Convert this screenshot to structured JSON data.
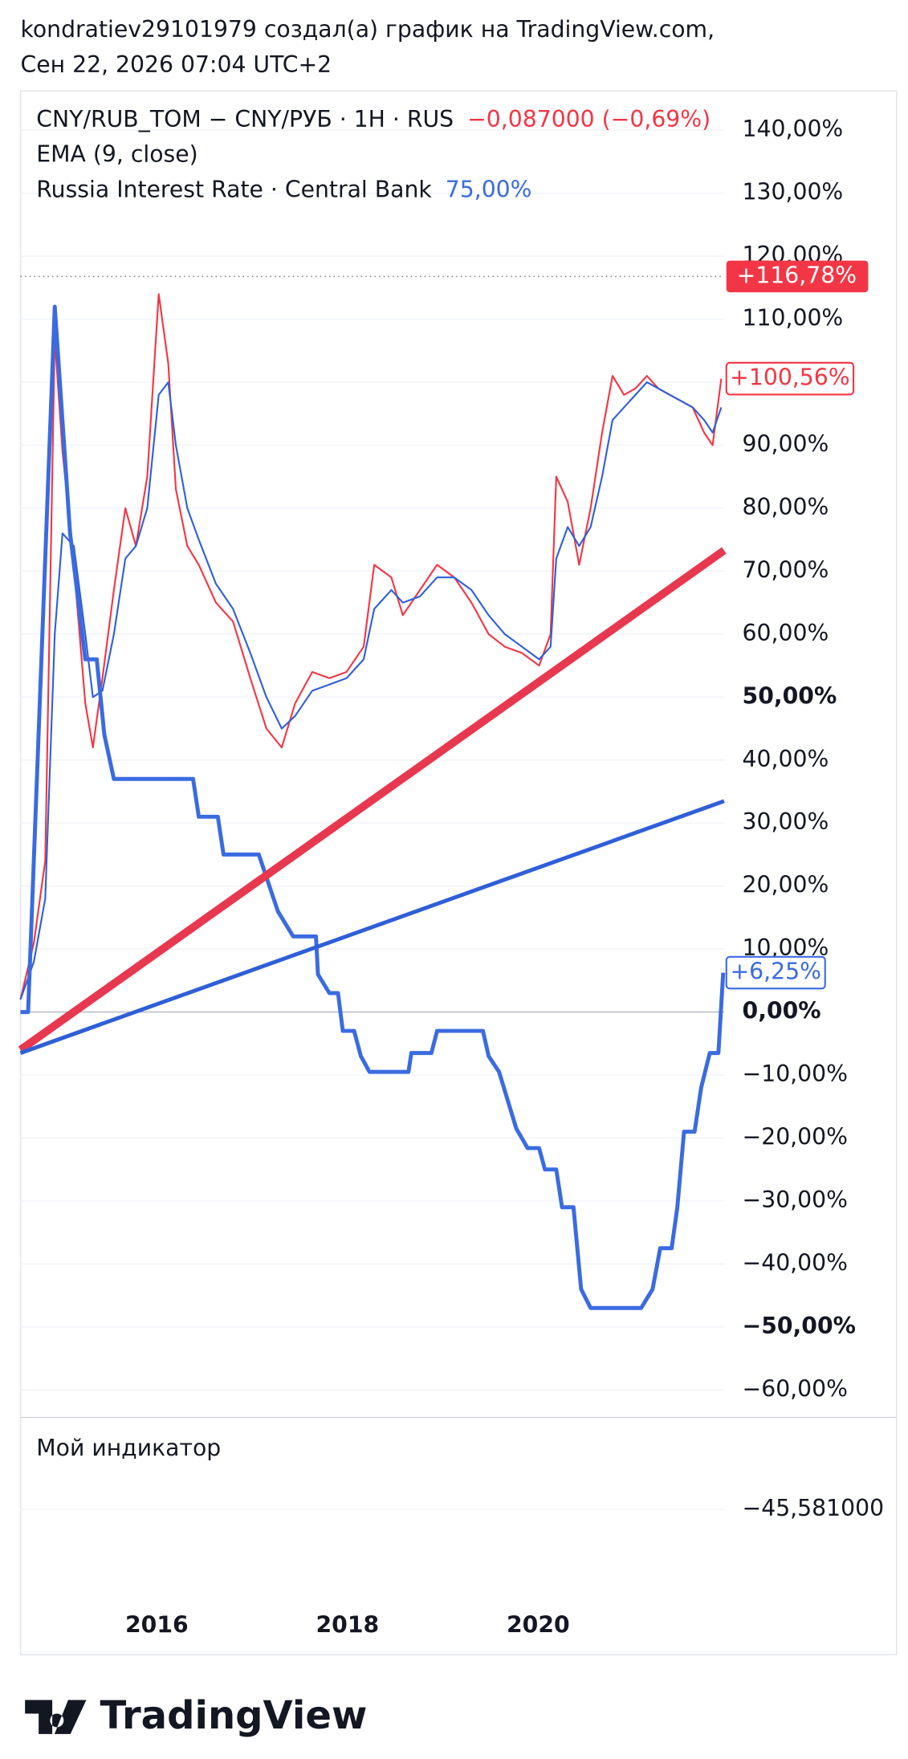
{
  "header": {
    "line1": "kondratiev29101979 создал(а) график на TradingView.com,",
    "line2": "Сен 22, 2026 07:04 UTC+2"
  },
  "chart_data": {
    "type": "line",
    "xlim": [
      2014.57,
      2021.95
    ],
    "xticks": [
      2016,
      2018,
      2020
    ],
    "ylim": [
      -64,
      145
    ],
    "yticks": [
      {
        "value": -60,
        "label": "−60,00%"
      },
      {
        "value": -50,
        "label": "−50,00%"
      },
      {
        "value": -40,
        "label": "−40,00%"
      },
      {
        "value": -30,
        "label": "−30,00%"
      },
      {
        "value": -20,
        "label": "−20,00%"
      },
      {
        "value": -10,
        "label": "−10,00%"
      },
      {
        "value": 0,
        "label": "0,00%"
      },
      {
        "value": 10,
        "label": "10,00%"
      },
      {
        "value": 20,
        "label": "20,00%"
      },
      {
        "value": 30,
        "label": "30,00%"
      },
      {
        "value": 40,
        "label": "40,00%"
      },
      {
        "value": 50,
        "label": "50,00%"
      },
      {
        "value": 60,
        "label": "60,00%"
      },
      {
        "value": 70,
        "label": "70,00%"
      },
      {
        "value": 80,
        "label": "80,00%"
      },
      {
        "value": 90,
        "label": "90,00%"
      },
      {
        "value": 100,
        "label": "100,00%"
      },
      {
        "value": 110,
        "label": "110,00%"
      },
      {
        "value": 120,
        "label": "120,00%"
      },
      {
        "value": 130,
        "label": "130,00%"
      },
      {
        "value": 140,
        "label": "140,00%"
      }
    ],
    "bold_yticks": [
      50,
      0,
      -50
    ],
    "grid": true,
    "high_line": {
      "value": 116.78,
      "label": "+116,78%",
      "color": "#f23645"
    },
    "series": [
      {
        "name": "CNY/RUB_TOM − CNY/РУБ · 1H · RUS",
        "change": "−0,087000 (−0,69%)",
        "color": "#f23645",
        "width": 1.5,
        "x": [
          2014.57,
          2014.71,
          2014.83,
          2014.93,
          2015.01,
          2015.13,
          2015.25,
          2015.33,
          2015.43,
          2015.55,
          2015.67,
          2015.78,
          2015.9,
          2016.02,
          2016.12,
          2016.2,
          2016.32,
          2016.44,
          2016.62,
          2016.8,
          2016.98,
          2017.15,
          2017.31,
          2017.45,
          2017.63,
          2017.81,
          2017.99,
          2018.17,
          2018.28,
          2018.46,
          2018.58,
          2018.76,
          2018.94,
          2019.12,
          2019.3,
          2019.48,
          2019.65,
          2019.83,
          2020.01,
          2020.13,
          2020.19,
          2020.31,
          2020.43,
          2020.55,
          2020.67,
          2020.78,
          2020.9,
          2021.02,
          2021.14,
          2021.26,
          2021.38,
          2021.5,
          2021.62,
          2021.74,
          2021.83,
          2021.92
        ],
        "values": [
          2,
          11,
          24,
          107,
          89,
          71,
          49,
          42,
          53,
          67,
          80,
          74,
          85,
          114,
          103,
          83,
          74,
          71,
          65,
          62,
          53,
          45,
          42,
          49,
          54,
          53,
          54,
          58,
          71,
          69,
          63,
          67,
          71,
          69,
          65,
          60,
          58,
          57,
          55,
          60,
          85,
          81,
          71,
          80,
          92,
          101,
          98,
          99,
          101,
          99,
          98,
          97,
          96,
          92,
          90,
          100.56
        ],
        "last_label": "+100,56%"
      },
      {
        "name": "EMA (9, close)",
        "color": "#2f5fd8",
        "width": 1.5,
        "x": [
          2014.57,
          2014.71,
          2014.83,
          2014.93,
          2015.01,
          2015.13,
          2015.25,
          2015.33,
          2015.43,
          2015.55,
          2015.67,
          2015.78,
          2015.9,
          2016.02,
          2016.12,
          2016.2,
          2016.32,
          2016.44,
          2016.62,
          2016.8,
          2016.98,
          2017.15,
          2017.31,
          2017.45,
          2017.63,
          2017.81,
          2017.99,
          2018.17,
          2018.28,
          2018.46,
          2018.58,
          2018.76,
          2018.94,
          2019.12,
          2019.3,
          2019.48,
          2019.65,
          2019.83,
          2020.01,
          2020.13,
          2020.19,
          2020.31,
          2020.43,
          2020.55,
          2020.67,
          2020.78,
          2020.9,
          2021.02,
          2021.14,
          2021.26,
          2021.38,
          2021.5,
          2021.62,
          2021.74,
          2021.83,
          2021.92
        ],
        "values": [
          2,
          8,
          18,
          60,
          76,
          74,
          60,
          50,
          51,
          60,
          72,
          74,
          80,
          98,
          100,
          90,
          80,
          75,
          68,
          64,
          57,
          50,
          45,
          47,
          51,
          52,
          53,
          56,
          64,
          67,
          65,
          66,
          69,
          69,
          67,
          63,
          60,
          58,
          56,
          58,
          72,
          77,
          74,
          77,
          85,
          94,
          96,
          98,
          100,
          99,
          98,
          97,
          96,
          94,
          92,
          96
        ]
      },
      {
        "name": "Russia Interest Rate · Central Bank",
        "legend_value": "75,00%",
        "color": "#3a6be0",
        "width": 3.5,
        "x": [
          2014.57,
          2014.65,
          2014.93,
          2015.09,
          2015.25,
          2015.37,
          2015.45,
          2015.55,
          2016.38,
          2016.44,
          2016.64,
          2016.7,
          2017.07,
          2017.27,
          2017.43,
          2017.67,
          2017.69,
          2017.81,
          2017.9,
          2017.95,
          2018.07,
          2018.14,
          2018.23,
          2018.64,
          2018.67,
          2018.88,
          2018.94,
          2019.42,
          2019.48,
          2019.59,
          2019.77,
          2019.89,
          2020.01,
          2020.07,
          2020.19,
          2020.25,
          2020.37,
          2020.45,
          2020.55,
          2021.08,
          2021.2,
          2021.28,
          2021.4,
          2021.46,
          2021.53,
          2021.64,
          2021.71,
          2021.8,
          2021.89,
          2021.94
        ],
        "values": [
          0,
          0,
          112,
          76,
          56,
          56,
          44,
          37,
          37,
          31,
          31,
          25,
          25,
          16,
          12,
          12,
          6,
          3,
          3,
          -3,
          -3,
          -7,
          -9.5,
          -9.5,
          -6.5,
          -6.5,
          -3,
          -3,
          -7,
          -9.5,
          -18.5,
          -21.6,
          -21.6,
          -25,
          -25,
          -31,
          -31,
          -44,
          -47,
          -47,
          -44,
          -37.5,
          -37.5,
          -31,
          -19,
          -19,
          -12,
          -6.5,
          -6.5,
          6.25
        ],
        "last_label": "+6,25%"
      },
      {
        "color": "#e8384f",
        "width": 7,
        "x": [
          2014.57,
          2021.95
        ],
        "values": [
          -6,
          73.3
        ]
      },
      {
        "color": "#2f5fd8",
        "width": 3.5,
        "x": [
          2014.57,
          2021.95
        ],
        "values": [
          -6.5,
          33.5
        ]
      }
    ]
  },
  "indicator": {
    "title": "Мой индикатор",
    "label": "−45,581000"
  },
  "footer": {
    "brand": "TradingView"
  }
}
